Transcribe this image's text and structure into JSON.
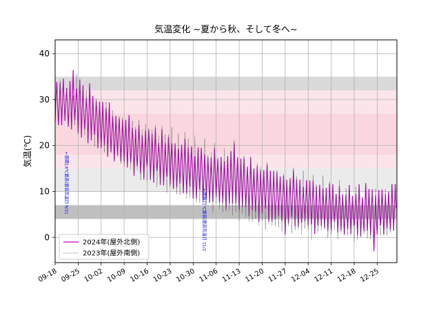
{
  "chart_data": {
    "type": "line",
    "title": "気温変化 ~夏から秋、そして冬へ~",
    "xlabel": "",
    "ylabel": "気温(℃)",
    "ylim": [
      -5.5,
      43
    ],
    "xlim": [
      "2024-09-18",
      "2024-12-31"
    ],
    "yticks": [
      0,
      10,
      20,
      30,
      40
    ],
    "xticks": [
      "09-18",
      "09-25",
      "10-02",
      "10-09",
      "10-16",
      "10-23",
      "10-30",
      "11-06",
      "11-13",
      "11-20",
      "11-27",
      "12-04",
      "12-11",
      "12-18",
      "12-25"
    ],
    "grid": true,
    "legend_position": "lower-left",
    "bands": [
      {
        "from": 32,
        "to": 35,
        "color": "#d9d9d9"
      },
      {
        "from": 27,
        "to": 32,
        "color": "#fbe5ea"
      },
      {
        "from": 18,
        "to": 27,
        "color": "#fad7df"
      },
      {
        "from": 15,
        "to": 18,
        "color": "#fbe5ea"
      },
      {
        "from": 10,
        "to": 15,
        "color": "#ebebeb"
      },
      {
        "from": 4,
        "to": 7,
        "color": "#bfbfbf"
      }
    ],
    "annotations": [
      {
        "date": "2024-09-21",
        "y": 5,
        "text": "←昼間14℃最高(最高気温日 9/21"
      },
      {
        "date": "2024-11-02",
        "y": -3,
        "text": "←昼間21℃最高(最高気温日 11/2"
      }
    ],
    "series": [
      {
        "name": "2024年(屋外北側)",
        "color": "#c000c0",
        "style": "solid",
        "daily_max": [
          34,
          34,
          34,
          33,
          34,
          36,
          33,
          34,
          33,
          31,
          33,
          31,
          30,
          29,
          30,
          28,
          29,
          27,
          26,
          26,
          26,
          25,
          27,
          24,
          23,
          25,
          22,
          23,
          24,
          22,
          24,
          21,
          23,
          21,
          22,
          20,
          21,
          19,
          20,
          22,
          19,
          20,
          18,
          19,
          20,
          18,
          17,
          18,
          19,
          17,
          18,
          16,
          18,
          19,
          20,
          18,
          17,
          17,
          16,
          17,
          15,
          16,
          14,
          15,
          16,
          14,
          15,
          14,
          13,
          14,
          12,
          13,
          15,
          12,
          13,
          11,
          12,
          13,
          12,
          11,
          12,
          10,
          11,
          12,
          11,
          10,
          11,
          9,
          10,
          11,
          9,
          10,
          11,
          9,
          12,
          10,
          11,
          9,
          10,
          11,
          9,
          10,
          12,
          11
        ],
        "daily_min": [
          25,
          24,
          25,
          25,
          24,
          24,
          25,
          23,
          22,
          23,
          21,
          21,
          22,
          20,
          19,
          20,
          18,
          18,
          17,
          18,
          16,
          17,
          15,
          16,
          14,
          15,
          14,
          13,
          15,
          13,
          12,
          14,
          12,
          11,
          13,
          12,
          10,
          11,
          12,
          9,
          10,
          11,
          8,
          9,
          10,
          8,
          9,
          7,
          8,
          9,
          7,
          8,
          6,
          7,
          8,
          7,
          6,
          7,
          6,
          5,
          6,
          5,
          4,
          5,
          6,
          4,
          3,
          4,
          5,
          3,
          1,
          3,
          4,
          3,
          2,
          3,
          4,
          2,
          3,
          1,
          2,
          3,
          2,
          1,
          2,
          3,
          1,
          2,
          0,
          2,
          1,
          2,
          1,
          0,
          1,
          2,
          0,
          -3,
          1,
          2,
          1,
          2,
          1,
          2
        ]
      },
      {
        "name": "2023年(屋外南側)",
        "color": "#555555",
        "style": "dotted",
        "daily_max": [
          33,
          34,
          33,
          33,
          32,
          31,
          36,
          34,
          33,
          32,
          31,
          30,
          30,
          29,
          28,
          29,
          27,
          28,
          26,
          27,
          26,
          25,
          26,
          25,
          24,
          26,
          23,
          25,
          24,
          23,
          25,
          22,
          24,
          23,
          22,
          24,
          21,
          22,
          20,
          23,
          21,
          20,
          22,
          19,
          20,
          21,
          18,
          19,
          20,
          18,
          17,
          19,
          16,
          18,
          21,
          17,
          16,
          18,
          15,
          17,
          14,
          16,
          15,
          14,
          16,
          13,
          15,
          14,
          13,
          14,
          12,
          13,
          15,
          13,
          12,
          14,
          11,
          12,
          13,
          12,
          11,
          13,
          10,
          12,
          11,
          10,
          12,
          9,
          11,
          10,
          9,
          11,
          10,
          8,
          10,
          9,
          11,
          10,
          8,
          9,
          10,
          9,
          10,
          11
        ],
        "daily_min": [
          27,
          26,
          26,
          25,
          25,
          24,
          24,
          23,
          23,
          22,
          22,
          21,
          20,
          20,
          19,
          19,
          18,
          18,
          17,
          17,
          16,
          16,
          15,
          15,
          14,
          14,
          13,
          13,
          12,
          13,
          12,
          11,
          12,
          11,
          10,
          11,
          10,
          10,
          9,
          10,
          9,
          8,
          9,
          8,
          7,
          8,
          7,
          7,
          6,
          7,
          6,
          6,
          5,
          6,
          5,
          5,
          4,
          5,
          4,
          4,
          3,
          4,
          3,
          3,
          2,
          3,
          2,
          3,
          2,
          1,
          2,
          2,
          1,
          2,
          1,
          1,
          2,
          1,
          0,
          1,
          1,
          2,
          1,
          0,
          1,
          1,
          0,
          1,
          0,
          1,
          0,
          -1,
          0,
          0,
          1,
          0,
          -1,
          0,
          1,
          0,
          1,
          0,
          1,
          2
        ]
      }
    ]
  }
}
